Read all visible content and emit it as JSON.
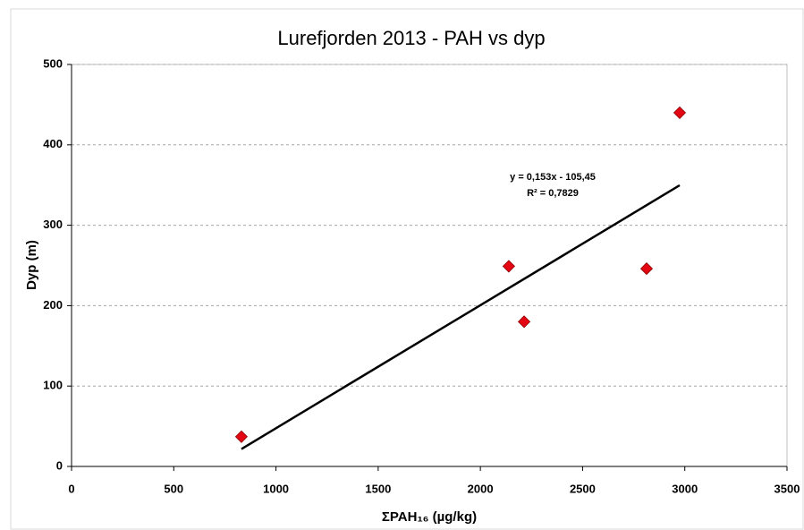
{
  "chart_data": {
    "type": "scatter",
    "title": "Lurefjorden 2013 - PAH vs dyp",
    "xlabel": "ΣPAH₁₆ (µg/kg)",
    "ylabel": "Dyp (m)",
    "series": [
      {
        "color": "#e30613",
        "x": [
          831,
          2139,
          2214,
          2813,
          2975
        ],
        "values": [
          37,
          249,
          180,
          246,
          440
        ]
      }
    ],
    "trendline": {
      "slope": 0.153,
      "intercept": -105.45,
      "equation": "y = 0,153x - 105,45",
      "r2": "R² = 0,7829",
      "color": "#000000"
    },
    "xlim": [
      0,
      3500
    ],
    "xticks": [
      0,
      500,
      1000,
      1500,
      2000,
      2500,
      3000,
      3500
    ],
    "ylim": [
      0,
      500
    ],
    "yticks": [
      0,
      100,
      200,
      300,
      400,
      500
    ],
    "grid": true
  }
}
